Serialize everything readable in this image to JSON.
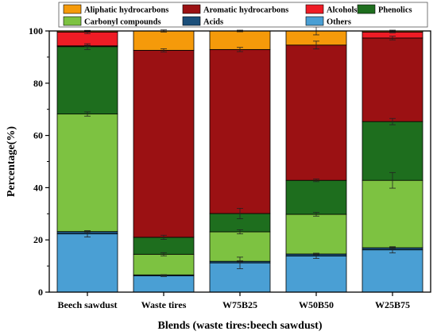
{
  "chart_data": {
    "type": "bar",
    "stacked": true,
    "xlabel": "Blends (waste tires:beech sawdust)",
    "ylabel": "Percentage(%)",
    "ylim": [
      0,
      100
    ],
    "yticks": [
      0,
      20,
      40,
      60,
      80,
      100
    ],
    "categories": [
      "Beech sawdust",
      "Waste tires",
      "W75B25",
      "W50B50",
      "W25B75"
    ],
    "legend_position": "top",
    "series": [
      {
        "name": "Others",
        "color": "#4a9fd4",
        "values": [
          22.3,
          6.3,
          11.2,
          13.8,
          16.2
        ],
        "errors": [
          1.2,
          0.3,
          2.2,
          0.9,
          1.2
        ]
      },
      {
        "name": "Acids",
        "color": "#1b4f7a",
        "values": [
          0.9,
          0.3,
          0.6,
          0.8,
          0.8
        ],
        "errors": [
          0.3,
          0.1,
          0.2,
          0.3,
          0.3
        ]
      },
      {
        "name": "Carbonyl compounds",
        "color": "#7dc241",
        "values": [
          45.0,
          7.9,
          11.3,
          15.2,
          25.8
        ],
        "errors": [
          0.8,
          0.6,
          0.8,
          0.7,
          3.0
        ]
      },
      {
        "name": "Phenolics",
        "color": "#1e6e1e",
        "values": [
          25.8,
          6.5,
          7.0,
          13.0,
          22.5
        ],
        "errors": [
          1.1,
          0.8,
          2.0,
          0.5,
          1.2
        ]
      },
      {
        "name": "Aromatic hydrocarbons",
        "color": "#9b1113",
        "values": [
          0.3,
          71.6,
          62.8,
          51.8,
          32.0
        ],
        "errors": [
          0.2,
          0.6,
          0.8,
          1.5,
          0.7
        ]
      },
      {
        "name": "Alcohols",
        "color": "#ee1c25",
        "values": [
          5.3,
          0.0,
          0.0,
          0.0,
          2.3
        ],
        "errors": [
          0.6,
          0,
          0,
          0,
          0.3
        ]
      },
      {
        "name": "Aliphatic hydrocarbons",
        "color": "#f59a0a",
        "values": [
          0.4,
          7.4,
          7.1,
          5.4,
          0.4
        ],
        "errors": [
          0.2,
          0.4,
          0.3,
          1.5,
          0.3
        ]
      }
    ],
    "legend_order": [
      "Aliphatic hydrocarbons",
      "Aromatic hydrocarbons",
      "Alcohols",
      "Phenolics",
      "Carbonyl compounds",
      "Acids",
      "Others"
    ]
  }
}
